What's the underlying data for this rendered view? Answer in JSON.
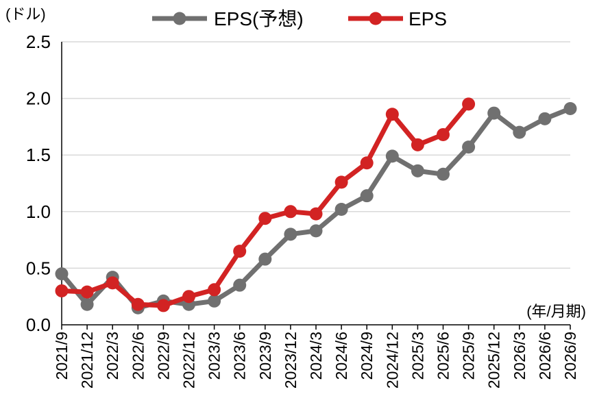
{
  "chart_data": {
    "type": "line",
    "y_unit_label": "(ドル)",
    "x_unit_label": "(年/月期)",
    "ylim": [
      0,
      2.5
    ],
    "yticks": [
      "0.0",
      "0.5",
      "1.0",
      "1.5",
      "2.0",
      "2.5"
    ],
    "grid": true,
    "legend_position": "top",
    "categories": [
      "2021/9",
      "2021/12",
      "2022/3",
      "2022/6",
      "2022/9",
      "2022/12",
      "2023/3",
      "2023/6",
      "2023/9",
      "2023/12",
      "2024/3",
      "2024/6",
      "2024/9",
      "2024/12",
      "2025/3",
      "2025/6",
      "2025/9",
      "2025/12",
      "2026/3",
      "2026/6",
      "2026/9"
    ],
    "series": [
      {
        "name": "EPS(予想)",
        "color": "#707070",
        "values": [
          0.45,
          0.18,
          0.42,
          0.15,
          0.21,
          0.18,
          0.21,
          0.35,
          0.58,
          0.8,
          0.83,
          1.02,
          1.14,
          1.49,
          1.36,
          1.33,
          1.57,
          1.87,
          1.7,
          1.82,
          1.91
        ]
      },
      {
        "name": "EPS",
        "color": "#d22323",
        "values": [
          0.3,
          0.29,
          0.37,
          0.18,
          0.17,
          0.25,
          0.31,
          0.65,
          0.94,
          1.0,
          0.98,
          1.26,
          1.43,
          1.86,
          1.59,
          1.68,
          1.95,
          null,
          null,
          null,
          null
        ]
      }
    ]
  }
}
